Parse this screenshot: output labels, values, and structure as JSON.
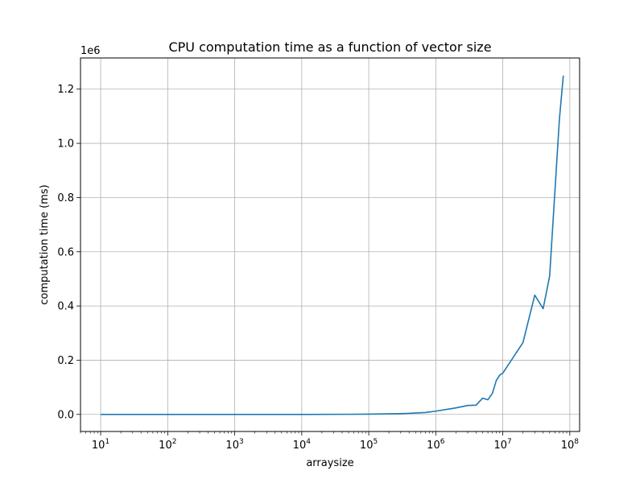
{
  "chart_data": {
    "type": "line",
    "title": "CPU computation time as a function of vector size",
    "xlabel": "arraysize",
    "ylabel": "computation time (ms)",
    "x_scale": "log",
    "y_offset_label": "1e6",
    "x_tick_labels": [
      {
        "value": 10,
        "base": "10",
        "exp": "1"
      },
      {
        "value": 100,
        "base": "10",
        "exp": "2"
      },
      {
        "value": 1000,
        "base": "10",
        "exp": "3"
      },
      {
        "value": 10000,
        "base": "10",
        "exp": "4"
      },
      {
        "value": 100000,
        "base": "10",
        "exp": "5"
      },
      {
        "value": 1000000,
        "base": "10",
        "exp": "6"
      },
      {
        "value": 10000000,
        "base": "10",
        "exp": "7"
      },
      {
        "value": 100000000,
        "base": "10",
        "exp": "8"
      }
    ],
    "y_tick_labels": [
      {
        "value": 0.0,
        "label": "0.0"
      },
      {
        "value": 0.2,
        "label": "0.2"
      },
      {
        "value": 0.4,
        "label": "0.4"
      },
      {
        "value": 0.6,
        "label": "0.6"
      },
      {
        "value": 0.8,
        "label": "0.8"
      },
      {
        "value": 1.0,
        "label": "1.0"
      },
      {
        "value": 1.2,
        "label": "1.2"
      }
    ],
    "xlim": [
      5,
      140000000
    ],
    "ylim": [
      -0.063,
      1.315
    ],
    "grid": true,
    "series": [
      {
        "color": "#1f77b4",
        "x": [
          10,
          100,
          1000,
          10000,
          50000,
          100000,
          300000,
          500000,
          700000,
          1000000,
          2000000,
          3000000,
          4000000,
          5000000,
          6000000,
          7000000,
          8000000,
          9000000,
          10000000,
          20000000,
          30000000,
          40000000,
          50000000,
          70000000,
          80000000
        ],
        "y": [
          0.0,
          0.0,
          0.0,
          0.0,
          0.0005,
          0.001,
          0.003,
          0.005,
          0.007,
          0.012,
          0.024,
          0.033,
          0.034,
          0.06,
          0.054,
          0.078,
          0.125,
          0.145,
          0.152,
          0.265,
          0.44,
          0.39,
          0.51,
          1.09,
          1.25
        ]
      }
    ]
  }
}
